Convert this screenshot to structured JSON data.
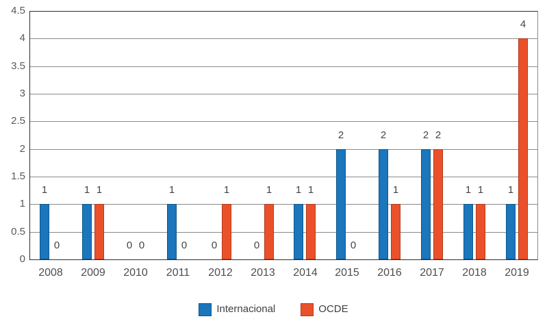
{
  "chart_data": {
    "type": "bar",
    "title": "",
    "xlabel": "",
    "ylabel": "",
    "categories": [
      "2008",
      "2009",
      "2010",
      "2011",
      "2012",
      "2013",
      "2014",
      "2015",
      "2016",
      "2017",
      "2018",
      "2019"
    ],
    "series": [
      {
        "name": "Internacional",
        "color": "#1B76BC",
        "border_color": "#0F5688",
        "values": [
          1,
          1,
          0,
          1,
          0,
          0,
          1,
          2,
          2,
          2,
          1,
          1
        ]
      },
      {
        "name": "OCDE",
        "color": "#EA512B",
        "border_color": "#B23A1B",
        "values": [
          0,
          1,
          0,
          0,
          1,
          1,
          1,
          0,
          1,
          2,
          1,
          4
        ]
      }
    ],
    "ylim": [
      0,
      4.5
    ],
    "ytick_step": 0.5,
    "ytick_labels": [
      "0",
      "0.5",
      "1",
      "1.5",
      "2",
      "2.5",
      "3",
      "3.5",
      "4",
      "4.5"
    ],
    "grid": true,
    "data_labels": true,
    "legend_position": "bottom"
  }
}
